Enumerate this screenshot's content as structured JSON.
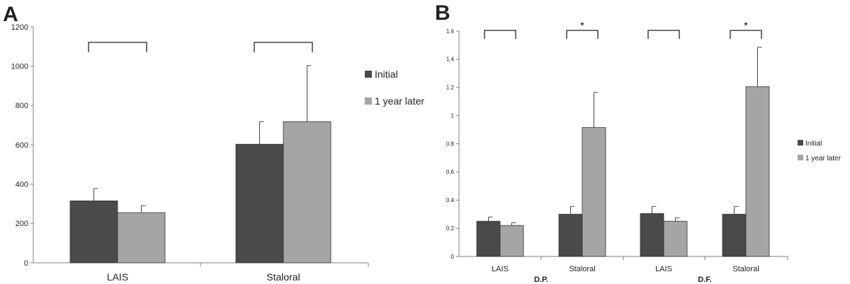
{
  "chart_data": [
    {
      "panel_label": "A",
      "type": "bar",
      "categories": [
        "LAIS",
        "Staloral"
      ],
      "ylim": [
        0,
        1200
      ],
      "yticks": [
        "0",
        "200",
        "400",
        "600",
        "800",
        "1000",
        "1200"
      ],
      "series": [
        {
          "name": "Initial",
          "values": [
            315,
            603
          ],
          "errors": [
            63,
            115
          ]
        },
        {
          "name": "1 year later",
          "values": [
            255,
            718
          ],
          "errors": [
            35,
            285
          ]
        }
      ],
      "brackets": [
        {
          "category": "LAIS",
          "label": ""
        },
        {
          "category": "Staloral",
          "label": ""
        }
      ],
      "legend_position": "right",
      "grid": false
    },
    {
      "panel_label": "B",
      "type": "bar",
      "categories": [
        "LAIS",
        "Staloral",
        "LAIS",
        "Staloral"
      ],
      "groups": [
        "D.P.",
        "D.F."
      ],
      "ylim": [
        0,
        1.6
      ],
      "yticks": [
        "0",
        "0.2",
        "0.4",
        "0.6",
        "0.8",
        "1",
        "1.2",
        "1.4",
        "1.6"
      ],
      "series": [
        {
          "name": "Initial",
          "values": [
            0.25,
            0.3,
            0.305,
            0.3
          ],
          "errors": [
            0.03,
            0.055,
            0.05,
            0.055
          ]
        },
        {
          "name": "1 year later",
          "values": [
            0.22,
            0.915,
            0.25,
            1.205
          ],
          "errors": [
            0.02,
            0.25,
            0.025,
            0.28
          ]
        }
      ],
      "brackets": [
        {
          "category": "LAIS",
          "label": ""
        },
        {
          "category": "Staloral",
          "label": "*"
        },
        {
          "category": "LAIS",
          "label": ""
        },
        {
          "category": "Staloral",
          "label": "*"
        }
      ],
      "legend_position": "right",
      "grid": false
    }
  ],
  "colors": {
    "initial": "#4a4a4a",
    "later": "#a5a5a5",
    "axis": "#7f7f7f"
  }
}
